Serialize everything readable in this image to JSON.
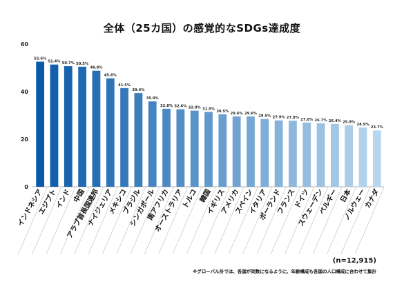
{
  "chart_data": {
    "type": "bar",
    "title": "全体（25カ国）の感覚的なSDGs達成度",
    "categories": [
      "インドネシア",
      "エジプト",
      "インド",
      "中国",
      "アラブ首長国連邦",
      "ナイジェリア",
      "メキシコ",
      "ブラジル",
      "シンガポール",
      "南アフリカ",
      "オーストラリア",
      "トルコ",
      "韓国",
      "イギリス",
      "アメリカ",
      "スペイン",
      "イタリア",
      "ポーランド",
      "フランス",
      "ドイツ",
      "スウェーデン",
      "ベルギー",
      "日本",
      "ノルウェー",
      "カナダ"
    ],
    "values": [
      52.6,
      51.4,
      50.7,
      50.5,
      48.8,
      45.6,
      41.5,
      39.4,
      35.9,
      32.8,
      32.6,
      32.0,
      31.5,
      30.5,
      29.6,
      29.6,
      28.5,
      27.9,
      27.8,
      27.0,
      26.7,
      26.4,
      25.9,
      24.9,
      23.7
    ],
    "data_labels": [
      "52.6%",
      "51.4%",
      "50.7%",
      "50.5%",
      "48.8%",
      "45.6%",
      "41.5%",
      "39.4%",
      "35.9%",
      "32.8%",
      "32.6%",
      "32.0%",
      "31.5%",
      "30.5%",
      "29.6%",
      "29.6%",
      "28.5%",
      "27.9%",
      "27.8%",
      "27.0%",
      "26.7%",
      "26.4%",
      "25.9%",
      "24.9%",
      "23.7%"
    ],
    "yticks": [
      0,
      20,
      40,
      60
    ],
    "ylim": [
      0,
      60
    ],
    "xlabel": "",
    "ylabel": "",
    "grid": false,
    "colors": {
      "dark": "#0b5aa8",
      "light": "#b8d7ef"
    }
  },
  "sample_size": "(n=12,915)",
  "footnote": "※グローバル計では、各国が同数になるように、年齢構成も各国の人口構成に合わせて集計"
}
